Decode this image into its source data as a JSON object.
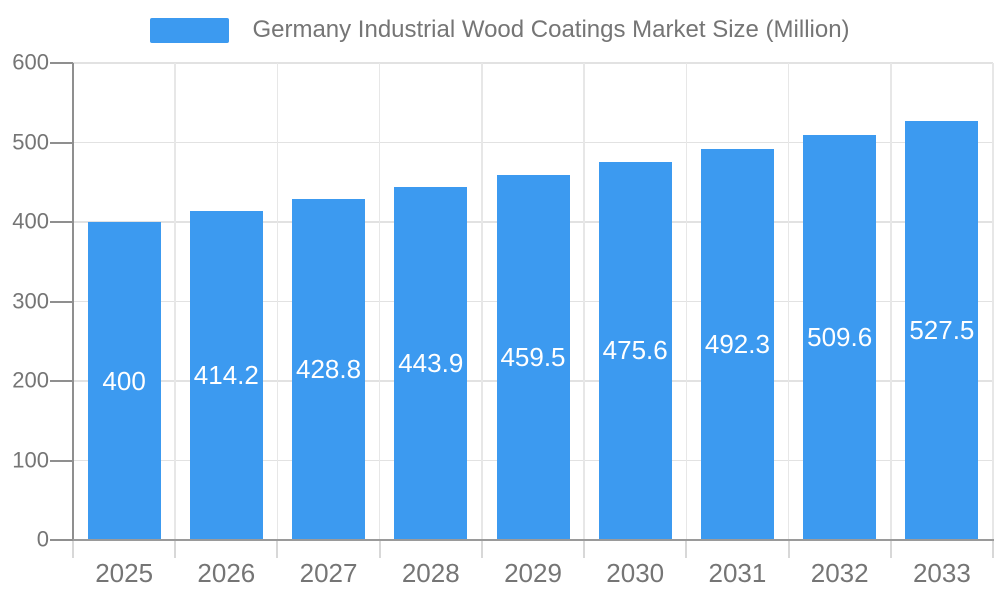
{
  "chart_data": {
    "type": "bar",
    "title": "Germany Industrial Wood Coatings Market Size (Million)",
    "legend": {
      "label": "Germany Industrial Wood Coatings Market Size (Million)",
      "position": "top-center"
    },
    "categories": [
      "2025",
      "2026",
      "2027",
      "2028",
      "2029",
      "2030",
      "2031",
      "2032",
      "2033"
    ],
    "series": [
      {
        "name": "Germany Industrial Wood Coatings Market Size (Million)",
        "values": [
          400,
          414.2,
          428.8,
          443.9,
          459.5,
          475.6,
          492.3,
          509.6,
          527.5
        ]
      }
    ],
    "xlabel": "",
    "ylabel": "",
    "ylim": [
      0,
      600
    ],
    "y_ticks": [
      0,
      100,
      200,
      300,
      400,
      500,
      600
    ],
    "grid": true,
    "value_labels_inside_bars": true,
    "colors": {
      "bar": "#3c9af0",
      "bar_value_text": "#ffffff",
      "axis_text": "#757575",
      "axis_line": "#8f8f8f",
      "gridline": "#e2e2e2",
      "background": "#ffffff"
    }
  }
}
